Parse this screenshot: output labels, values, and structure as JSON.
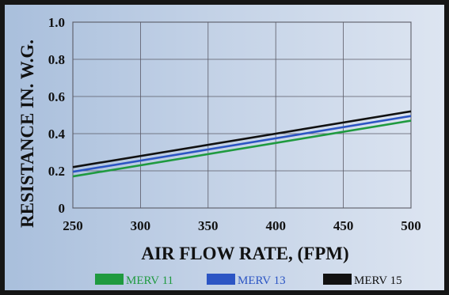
{
  "chart_data": {
    "type": "line",
    "xlabel": "AIR FLOW RATE, (FPM)",
    "ylabel": "RESISTANCE IN. W.G.",
    "xlim": [
      250,
      500
    ],
    "ylim": [
      0,
      1.0
    ],
    "x_ticks": [
      "250",
      "300",
      "350",
      "400",
      "450",
      "500"
    ],
    "y_ticks": [
      "0",
      "0.2",
      "0.4",
      "0.6",
      "0.8",
      "1.0"
    ],
    "grid": true,
    "legend_position": "bottom",
    "series": [
      {
        "name": "MERV 11",
        "color": "#1f9a3f",
        "x": [
          250,
          500
        ],
        "y": [
          0.17,
          0.47
        ]
      },
      {
        "name": "MERV 13",
        "color": "#2c55c4",
        "x": [
          250,
          500
        ],
        "y": [
          0.195,
          0.495
        ]
      },
      {
        "name": "MERV 15",
        "color": "#111111",
        "x": [
          250,
          500
        ],
        "y": [
          0.22,
          0.52
        ]
      }
    ]
  }
}
